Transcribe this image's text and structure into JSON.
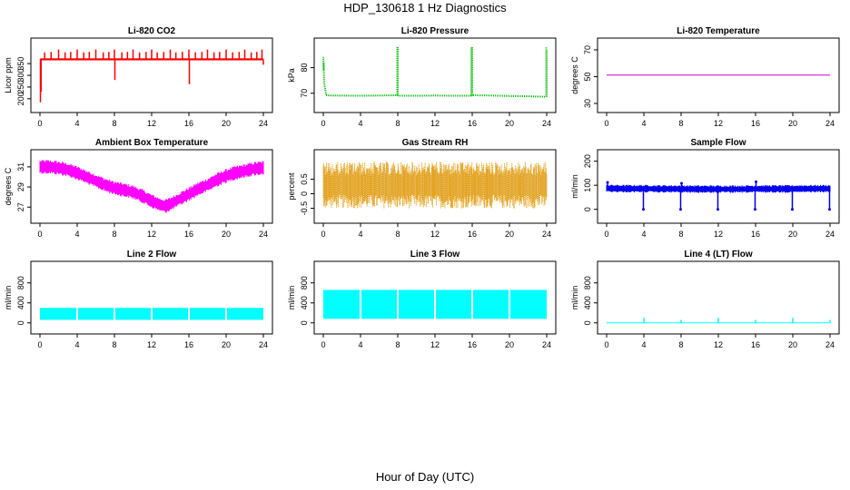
{
  "title": "HDP_130618  1 Hz Diagnostics",
  "xlabel": "Hour of Day (UTC)",
  "chart_data": [
    {
      "type": "line",
      "title": "Li-820 CO2",
      "ylabel": "Licor ppm",
      "xlim": [
        0,
        24
      ],
      "ylim": [
        180,
        420
      ],
      "xticks": [
        0,
        4,
        8,
        12,
        16,
        20,
        24
      ],
      "yticks": [
        200,
        250,
        300,
        350
      ],
      "color": "#ff0000",
      "style": "band",
      "base": 368,
      "band": [
        364,
        372
      ],
      "series": [
        {
          "x": [
            0.1,
            24
          ],
          "y": [
            368,
            368
          ]
        }
      ],
      "spikes": [
        {
          "x": 0.05,
          "y": 185
        },
        {
          "x": 0.12,
          "y": 230
        },
        {
          "x": 0.5,
          "y": 398
        },
        {
          "x": 1.2,
          "y": 400
        },
        {
          "x": 2.0,
          "y": 410
        },
        {
          "x": 2.7,
          "y": 398
        },
        {
          "x": 3.3,
          "y": 400
        },
        {
          "x": 4.0,
          "y": 410
        },
        {
          "x": 4.7,
          "y": 398
        },
        {
          "x": 5.3,
          "y": 400
        },
        {
          "x": 6.0,
          "y": 410
        },
        {
          "x": 6.8,
          "y": 398
        },
        {
          "x": 7.4,
          "y": 400
        },
        {
          "x": 8.0,
          "y": 410
        },
        {
          "x": 8.05,
          "y": 280
        },
        {
          "x": 8.8,
          "y": 398
        },
        {
          "x": 9.4,
          "y": 400
        },
        {
          "x": 10.0,
          "y": 410
        },
        {
          "x": 10.7,
          "y": 398
        },
        {
          "x": 11.4,
          "y": 400
        },
        {
          "x": 12.0,
          "y": 410
        },
        {
          "x": 12.6,
          "y": 398
        },
        {
          "x": 13.3,
          "y": 400
        },
        {
          "x": 14.0,
          "y": 410
        },
        {
          "x": 14.6,
          "y": 398
        },
        {
          "x": 15.3,
          "y": 400
        },
        {
          "x": 16.0,
          "y": 410
        },
        {
          "x": 16.05,
          "y": 262
        },
        {
          "x": 16.7,
          "y": 398
        },
        {
          "x": 17.4,
          "y": 400
        },
        {
          "x": 18.0,
          "y": 410
        },
        {
          "x": 18.7,
          "y": 398
        },
        {
          "x": 19.3,
          "y": 400
        },
        {
          "x": 20.0,
          "y": 410
        },
        {
          "x": 20.7,
          "y": 398
        },
        {
          "x": 21.4,
          "y": 400
        },
        {
          "x": 22.0,
          "y": 410
        },
        {
          "x": 22.7,
          "y": 398
        },
        {
          "x": 23.3,
          "y": 400
        },
        {
          "x": 23.85,
          "y": 410
        },
        {
          "x": 24.0,
          "y": 345
        }
      ]
    },
    {
      "type": "line",
      "title": "Li-820 Pressure",
      "ylabel": "kPa",
      "xlim": [
        0,
        24
      ],
      "ylim": [
        66,
        88
      ],
      "xticks": [
        0,
        4,
        8,
        12,
        16,
        20,
        24
      ],
      "yticks": [
        70,
        80
      ],
      "color": "#00bb00",
      "style": "dotted",
      "series": [
        {
          "x": [
            0,
            0.1,
            0.3,
            1,
            4,
            6,
            7.9,
            8.1,
            10,
            12,
            14,
            15.9,
            16.1,
            18,
            20,
            22,
            23.9
          ],
          "y": [
            84,
            74,
            69.2,
            69.1,
            69.0,
            69.1,
            69.2,
            69.0,
            69.0,
            69.1,
            69.0,
            69.0,
            69.2,
            69.1,
            68.9,
            68.8,
            68.6
          ]
        }
      ],
      "spikes": [
        {
          "x": 0.05,
          "y": 82
        },
        {
          "x": 7.95,
          "y": 88
        },
        {
          "x": 8.0,
          "y": 88
        },
        {
          "x": 15.9,
          "y": 88
        },
        {
          "x": 15.95,
          "y": 88
        },
        {
          "x": 16.0,
          "y": 88
        },
        {
          "x": 23.95,
          "y": 88
        },
        {
          "x": 24.0,
          "y": 87
        }
      ]
    },
    {
      "type": "line",
      "title": "Li-820 Temperature",
      "ylabel": "degrees C",
      "xlim": [
        0,
        24
      ],
      "ylim": [
        30,
        72
      ],
      "xticks": [
        0,
        4,
        8,
        12,
        16,
        20,
        24
      ],
      "yticks": [
        30,
        50,
        70
      ],
      "color": "#cc00cc",
      "style": "line",
      "series": [
        {
          "x": [
            0,
            24
          ],
          "y": [
            51.2,
            51.2
          ]
        }
      ],
      "spikes": []
    },
    {
      "type": "line",
      "title": "Ambient Box Temperature",
      "ylabel": "degrees C",
      "xlim": [
        0,
        24
      ],
      "ylim": [
        26.3,
        31.8
      ],
      "xticks": [
        0,
        4,
        8,
        12,
        16,
        20,
        24
      ],
      "yticks": [
        27,
        29,
        31
      ],
      "color": "#ff00ff",
      "style": "band",
      "bandwidth": 0.35,
      "series": [
        {
          "x": [
            0,
            1,
            2,
            3,
            4,
            5,
            6,
            7,
            8,
            9,
            10,
            11,
            12,
            13,
            13.5,
            14,
            15,
            16,
            17,
            18,
            19,
            20,
            21,
            22,
            23,
            24
          ],
          "y": [
            31.0,
            31.0,
            30.9,
            30.7,
            30.4,
            30.0,
            29.6,
            29.2,
            28.9,
            28.7,
            28.5,
            28.1,
            27.6,
            27.2,
            27.1,
            27.3,
            27.8,
            28.3,
            28.8,
            29.2,
            29.7,
            30.1,
            30.4,
            30.6,
            30.8,
            30.9
          ]
        }
      ],
      "spikes": []
    },
    {
      "type": "line",
      "title": "Gas Stream RH",
      "ylabel": "percent",
      "xlim": [
        0,
        24
      ],
      "ylim": [
        -0.7,
        1.2
      ],
      "xticks": [
        0,
        4,
        8,
        12,
        16,
        20,
        24
      ],
      "yticks": [
        -0.5,
        0.0,
        0.5
      ],
      "color": "#ffa500",
      "style": "noise",
      "base": 0.3,
      "band": [
        -0.5,
        1.1
      ],
      "series": [
        {
          "x": [
            0,
            24
          ],
          "y": [
            0.3,
            0.3
          ]
        }
      ],
      "spikes": []
    },
    {
      "type": "line",
      "title": "Sample Flow",
      "ylabel": "ml/min",
      "xlim": [
        0,
        24
      ],
      "ylim": [
        -20,
        210
      ],
      "xticks": [
        0,
        4,
        8,
        12,
        16,
        20,
        24
      ],
      "yticks": [
        0,
        100,
        200
      ],
      "color": "#0000ee",
      "style": "band",
      "bandwidth": 8,
      "series": [
        {
          "x": [
            0,
            2,
            4,
            6,
            8,
            10,
            12,
            14,
            16,
            18,
            20,
            22,
            24
          ],
          "y": [
            87,
            86,
            86,
            85,
            85,
            84,
            84,
            84,
            85,
            85,
            85,
            86,
            86
          ]
        }
      ],
      "spikes": [
        {
          "x": 0.1,
          "y": 112
        },
        {
          "x": 3.95,
          "y": 0
        },
        {
          "x": 7.95,
          "y": 0
        },
        {
          "x": 8.05,
          "y": 108
        },
        {
          "x": 11.95,
          "y": 0
        },
        {
          "x": 15.95,
          "y": 0
        },
        {
          "x": 16.05,
          "y": 115
        },
        {
          "x": 19.95,
          "y": 0
        },
        {
          "x": 23.95,
          "y": 0
        }
      ]
    },
    {
      "type": "line",
      "title": "Line 2 Flow",
      "ylabel": "ml/min",
      "xlim": [
        0,
        24
      ],
      "ylim": [
        -40,
        1050
      ],
      "xticks": [
        0,
        4,
        8,
        12,
        16,
        20,
        24
      ],
      "yticks": [
        0,
        400,
        800
      ],
      "color": "#00ffff",
      "style": "band",
      "band": [
        60,
        300
      ],
      "series": [
        {
          "x": [
            0,
            24
          ],
          "y": [
            180,
            180
          ]
        }
      ],
      "gaps": [
        4,
        8,
        12,
        16,
        20
      ],
      "spikes": []
    },
    {
      "type": "line",
      "title": "Line 3 Flow",
      "ylabel": "ml/min",
      "xlim": [
        0,
        24
      ],
      "ylim": [
        -40,
        1050
      ],
      "xticks": [
        0,
        4,
        8,
        12,
        16,
        20,
        24
      ],
      "yticks": [
        0,
        400,
        800
      ],
      "color": "#00ffff",
      "style": "band",
      "band": [
        80,
        660
      ],
      "series": [
        {
          "x": [
            0,
            24
          ],
          "y": [
            370,
            370
          ]
        }
      ],
      "gaps": [
        4,
        8,
        12,
        16,
        20
      ],
      "spikes": []
    },
    {
      "type": "line",
      "title": "Line 4 (LT) Flow",
      "ylabel": "ml/min",
      "xlim": [
        0,
        24
      ],
      "ylim": [
        -40,
        1050
      ],
      "xticks": [
        0,
        4,
        8,
        12,
        16,
        20,
        24
      ],
      "yticks": [
        0,
        400,
        800
      ],
      "color": "#00ffff",
      "style": "line",
      "series": [
        {
          "x": [
            0,
            24
          ],
          "y": [
            0,
            0
          ]
        }
      ],
      "spikes": [
        {
          "x": 4.0,
          "y": 100
        },
        {
          "x": 8.0,
          "y": 60
        },
        {
          "x": 12.0,
          "y": 100
        },
        {
          "x": 16.0,
          "y": 60
        },
        {
          "x": 20.0,
          "y": 100
        },
        {
          "x": 24.0,
          "y": 60
        }
      ]
    }
  ]
}
